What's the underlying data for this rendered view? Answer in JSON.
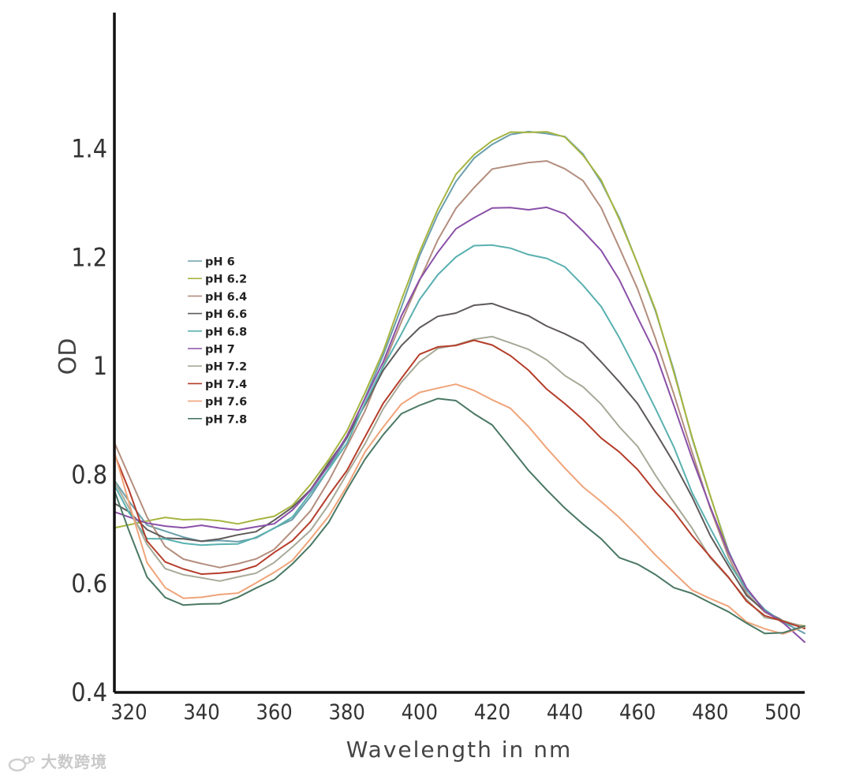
{
  "chart_data": {
    "type": "line",
    "title": "",
    "xlabel": "Wavelength in nm",
    "ylabel": "OD",
    "xlim": [
      316,
      506
    ],
    "ylim": [
      0.4,
      1.65
    ],
    "x_ticks": [
      320,
      340,
      360,
      380,
      400,
      420,
      440,
      460,
      480,
      500
    ],
    "y_ticks": [
      0.4,
      0.6,
      0.8,
      1.0,
      1.2,
      1.4
    ],
    "y_tick_labels": [
      "0.4",
      "0.6",
      "0.8",
      "1",
      "1.2",
      "1.4"
    ],
    "legend_position": "left",
    "x": [
      316,
      320,
      325,
      330,
      335,
      340,
      345,
      350,
      355,
      360,
      365,
      370,
      375,
      380,
      385,
      390,
      395,
      400,
      405,
      410,
      415,
      420,
      425,
      430,
      435,
      440,
      445,
      450,
      455,
      460,
      465,
      470,
      475,
      480,
      485,
      490,
      495,
      500,
      506
    ],
    "series": [
      {
        "name": "pH 6",
        "color": "#6a9fab",
        "values": [
          0.79,
          0.75,
          0.71,
          0.695,
          0.685,
          0.68,
          0.677,
          0.678,
          0.685,
          0.7,
          0.72,
          0.76,
          0.81,
          0.87,
          0.94,
          1.02,
          1.11,
          1.2,
          1.28,
          1.34,
          1.38,
          1.41,
          1.425,
          1.43,
          1.43,
          1.42,
          1.39,
          1.34,
          1.27,
          1.19,
          1.1,
          0.99,
          0.87,
          0.76,
          0.66,
          0.59,
          0.55,
          0.53,
          0.51
        ]
      },
      {
        "name": "pH 6.2",
        "color": "#a6b540",
        "values": [
          0.7,
          0.71,
          0.715,
          0.72,
          0.72,
          0.717,
          0.715,
          0.712,
          0.715,
          0.725,
          0.745,
          0.78,
          0.83,
          0.88,
          0.95,
          1.03,
          1.12,
          1.21,
          1.29,
          1.35,
          1.39,
          1.415,
          1.428,
          1.432,
          1.43,
          1.42,
          1.39,
          1.34,
          1.27,
          1.19,
          1.1,
          0.99,
          0.87,
          0.76,
          0.66,
          0.59,
          0.55,
          0.53,
          0.52
        ]
      },
      {
        "name": "pH 6.4",
        "color": "#b38e7e",
        "values": [
          0.86,
          0.8,
          0.72,
          0.67,
          0.645,
          0.635,
          0.632,
          0.635,
          0.645,
          0.665,
          0.695,
          0.735,
          0.79,
          0.85,
          0.92,
          1.0,
          1.08,
          1.16,
          1.23,
          1.29,
          1.33,
          1.36,
          1.37,
          1.375,
          1.375,
          1.365,
          1.34,
          1.29,
          1.22,
          1.14,
          1.05,
          0.95,
          0.84,
          0.74,
          0.65,
          0.58,
          0.55,
          0.53,
          0.52
        ]
      },
      {
        "name": "pH 6.6",
        "color": "#5f5a5a",
        "values": [
          0.75,
          0.73,
          0.7,
          0.685,
          0.68,
          0.68,
          0.682,
          0.688,
          0.698,
          0.715,
          0.74,
          0.775,
          0.82,
          0.87,
          0.93,
          0.99,
          1.04,
          1.07,
          1.09,
          1.1,
          1.11,
          1.115,
          1.105,
          1.09,
          1.075,
          1.06,
          1.04,
          1.01,
          0.97,
          0.93,
          0.88,
          0.82,
          0.76,
          0.69,
          0.63,
          0.58,
          0.55,
          0.53,
          0.52
        ]
      },
      {
        "name": "pH 6.8",
        "color": "#5ab0b0",
        "values": [
          0.78,
          0.73,
          0.685,
          0.68,
          0.675,
          0.672,
          0.67,
          0.675,
          0.685,
          0.7,
          0.725,
          0.765,
          0.81,
          0.86,
          0.93,
          1.0,
          1.06,
          1.12,
          1.17,
          1.2,
          1.22,
          1.225,
          1.215,
          1.205,
          1.2,
          1.18,
          1.15,
          1.11,
          1.05,
          0.99,
          0.92,
          0.85,
          0.77,
          0.7,
          0.64,
          0.59,
          0.55,
          0.53,
          0.52
        ]
      },
      {
        "name": "pH 7",
        "color": "#8a50a8",
        "values": [
          0.73,
          0.725,
          0.71,
          0.705,
          0.705,
          0.705,
          0.703,
          0.7,
          0.702,
          0.712,
          0.735,
          0.77,
          0.82,
          0.87,
          0.94,
          1.01,
          1.09,
          1.16,
          1.21,
          1.25,
          1.275,
          1.29,
          1.29,
          1.29,
          1.29,
          1.28,
          1.25,
          1.21,
          1.16,
          1.09,
          1.02,
          0.93,
          0.83,
          0.74,
          0.66,
          0.59,
          0.55,
          0.53,
          0.49
        ]
      },
      {
        "name": "pH 7.2",
        "color": "#a7aa98",
        "values": [
          0.79,
          0.74,
          0.67,
          0.63,
          0.615,
          0.61,
          0.607,
          0.61,
          0.62,
          0.64,
          0.665,
          0.7,
          0.745,
          0.8,
          0.86,
          0.92,
          0.97,
          1.01,
          1.03,
          1.04,
          1.05,
          1.052,
          1.045,
          1.03,
          1.01,
          0.985,
          0.96,
          0.93,
          0.89,
          0.85,
          0.8,
          0.75,
          0.7,
          0.65,
          0.61,
          0.57,
          0.54,
          0.53,
          0.52
        ]
      },
      {
        "name": "pH 7.4",
        "color": "#b53d2a",
        "values": [
          0.84,
          0.77,
          0.68,
          0.64,
          0.625,
          0.62,
          0.618,
          0.622,
          0.635,
          0.655,
          0.68,
          0.715,
          0.76,
          0.81,
          0.87,
          0.93,
          0.98,
          1.02,
          1.035,
          1.04,
          1.045,
          1.04,
          1.02,
          0.99,
          0.96,
          0.93,
          0.9,
          0.87,
          0.84,
          0.81,
          0.77,
          0.73,
          0.69,
          0.65,
          0.61,
          0.57,
          0.54,
          0.53,
          0.52
        ]
      },
      {
        "name": "pH 7.6",
        "color": "#f0a47a",
        "values": [
          0.84,
          0.75,
          0.64,
          0.59,
          0.575,
          0.575,
          0.578,
          0.585,
          0.6,
          0.62,
          0.645,
          0.68,
          0.725,
          0.78,
          0.84,
          0.89,
          0.93,
          0.95,
          0.962,
          0.965,
          0.955,
          0.94,
          0.92,
          0.89,
          0.85,
          0.81,
          0.78,
          0.75,
          0.72,
          0.69,
          0.65,
          0.62,
          0.59,
          0.57,
          0.56,
          0.53,
          0.515,
          0.51,
          0.52
        ]
      },
      {
        "name": "pH 7.8",
        "color": "#4a7864",
        "values": [
          0.77,
          0.7,
          0.61,
          0.575,
          0.562,
          0.56,
          0.565,
          0.575,
          0.59,
          0.61,
          0.635,
          0.67,
          0.715,
          0.77,
          0.83,
          0.875,
          0.91,
          0.93,
          0.94,
          0.935,
          0.915,
          0.89,
          0.85,
          0.81,
          0.77,
          0.74,
          0.71,
          0.68,
          0.65,
          0.635,
          0.615,
          0.595,
          0.58,
          0.565,
          0.55,
          0.525,
          0.51,
          0.51,
          0.52
        ]
      }
    ]
  },
  "watermark": {
    "logo": "weibo-like-logo-icon",
    "text": "大数跨境"
  }
}
